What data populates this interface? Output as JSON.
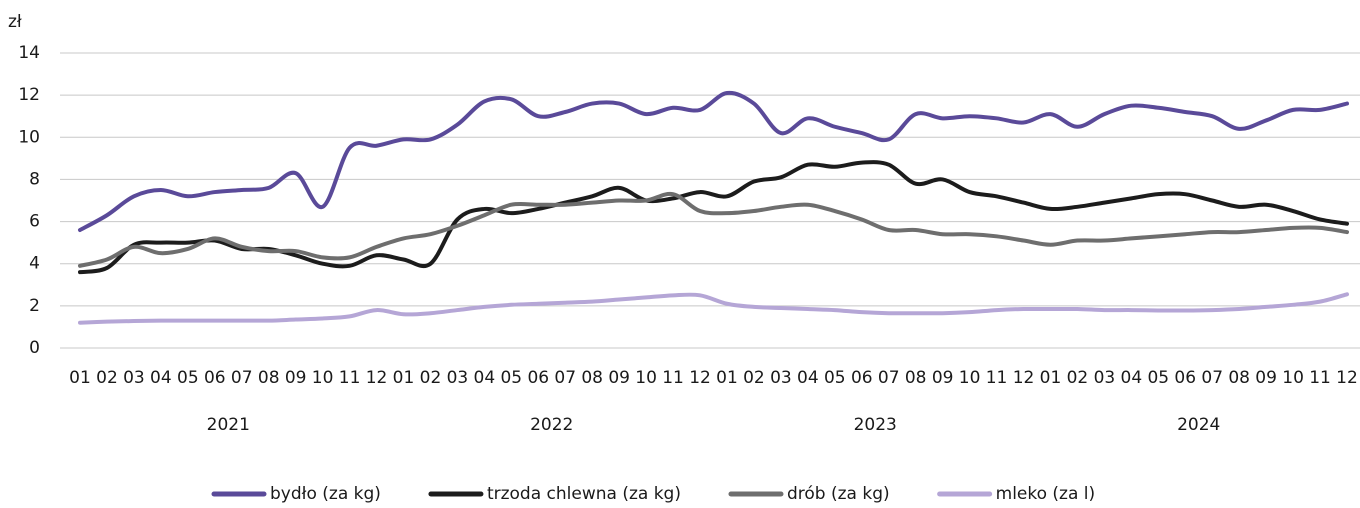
{
  "chart_data": {
    "type": "line",
    "y_label": "zł",
    "categories": [
      "01",
      "02",
      "03",
      "04",
      "05",
      "06",
      "07",
      "08",
      "09",
      "10",
      "11",
      "12",
      "01",
      "02",
      "03",
      "04",
      "05",
      "06",
      "07",
      "08",
      "09",
      "10",
      "11",
      "12",
      "01",
      "02",
      "03",
      "04",
      "05",
      "06",
      "07",
      "08",
      "09",
      "10",
      "11",
      "12",
      "01",
      "02",
      "03",
      "04",
      "05",
      "06",
      "07",
      "08",
      "09",
      "10",
      "11",
      "12"
    ],
    "year_labels": [
      "2021",
      "2022",
      "2023",
      "2024"
    ],
    "ylim": [
      0,
      14
    ],
    "yticks": [
      0,
      2,
      4,
      6,
      8,
      10,
      12,
      14
    ],
    "grid": true,
    "series": [
      {
        "name": "bydło (za kg)",
        "color": "#5a4a99",
        "values": [
          5.6,
          6.3,
          7.2,
          7.5,
          7.2,
          7.4,
          7.5,
          7.6,
          8.3,
          6.7,
          9.5,
          9.6,
          9.9,
          9.9,
          10.6,
          11.7,
          11.8,
          11.0,
          11.2,
          11.6,
          11.6,
          11.1,
          11.4,
          11.3,
          12.1,
          11.6,
          10.2,
          10.9,
          10.5,
          10.2,
          9.9,
          11.1,
          10.9,
          11.0,
          10.9,
          10.7,
          11.1,
          10.5,
          11.1,
          11.5,
          11.4,
          11.2,
          11.0,
          10.4,
          10.8,
          11.3,
          11.3,
          11.6
        ]
      },
      {
        "name": "trzoda chlewna (za kg)",
        "color": "#1c1c1c",
        "values": [
          3.6,
          3.8,
          4.9,
          5.0,
          5.0,
          5.1,
          4.7,
          4.7,
          4.4,
          4.0,
          3.9,
          4.4,
          4.2,
          4.0,
          6.1,
          6.6,
          6.4,
          6.6,
          6.9,
          7.2,
          7.6,
          7.0,
          7.1,
          7.4,
          7.2,
          7.9,
          8.1,
          8.7,
          8.6,
          8.8,
          8.7,
          7.8,
          8.0,
          7.4,
          7.2,
          6.9,
          6.6,
          6.7,
          6.9,
          7.1,
          7.3,
          7.3,
          7.0,
          6.7,
          6.8,
          6.5,
          6.1,
          5.9
        ]
      },
      {
        "name": "drób (za kg)",
        "color": "#6e6e6e",
        "values": [
          3.9,
          4.2,
          4.8,
          4.5,
          4.7,
          5.2,
          4.8,
          4.6,
          4.6,
          4.3,
          4.3,
          4.8,
          5.2,
          5.4,
          5.8,
          6.3,
          6.8,
          6.8,
          6.8,
          6.9,
          7.0,
          7.0,
          7.3,
          6.5,
          6.4,
          6.5,
          6.7,
          6.8,
          6.5,
          6.1,
          5.6,
          5.6,
          5.4,
          5.4,
          5.3,
          5.1,
          4.9,
          5.1,
          5.1,
          5.2,
          5.3,
          5.4,
          5.5,
          5.5,
          5.6,
          5.7,
          5.7,
          5.5
        ]
      },
      {
        "name": "mleko (za l)",
        "color": "#b5a6d6",
        "values": [
          1.2,
          1.25,
          1.28,
          1.3,
          1.3,
          1.3,
          1.3,
          1.3,
          1.35,
          1.4,
          1.5,
          1.8,
          1.6,
          1.65,
          1.8,
          1.95,
          2.05,
          2.1,
          2.15,
          2.2,
          2.3,
          2.4,
          2.5,
          2.5,
          2.1,
          1.95,
          1.9,
          1.85,
          1.8,
          1.7,
          1.65,
          1.65,
          1.65,
          1.7,
          1.8,
          1.85,
          1.85,
          1.85,
          1.8,
          1.8,
          1.78,
          1.78,
          1.8,
          1.85,
          1.95,
          2.05,
          2.2,
          2.55
        ]
      }
    ]
  }
}
